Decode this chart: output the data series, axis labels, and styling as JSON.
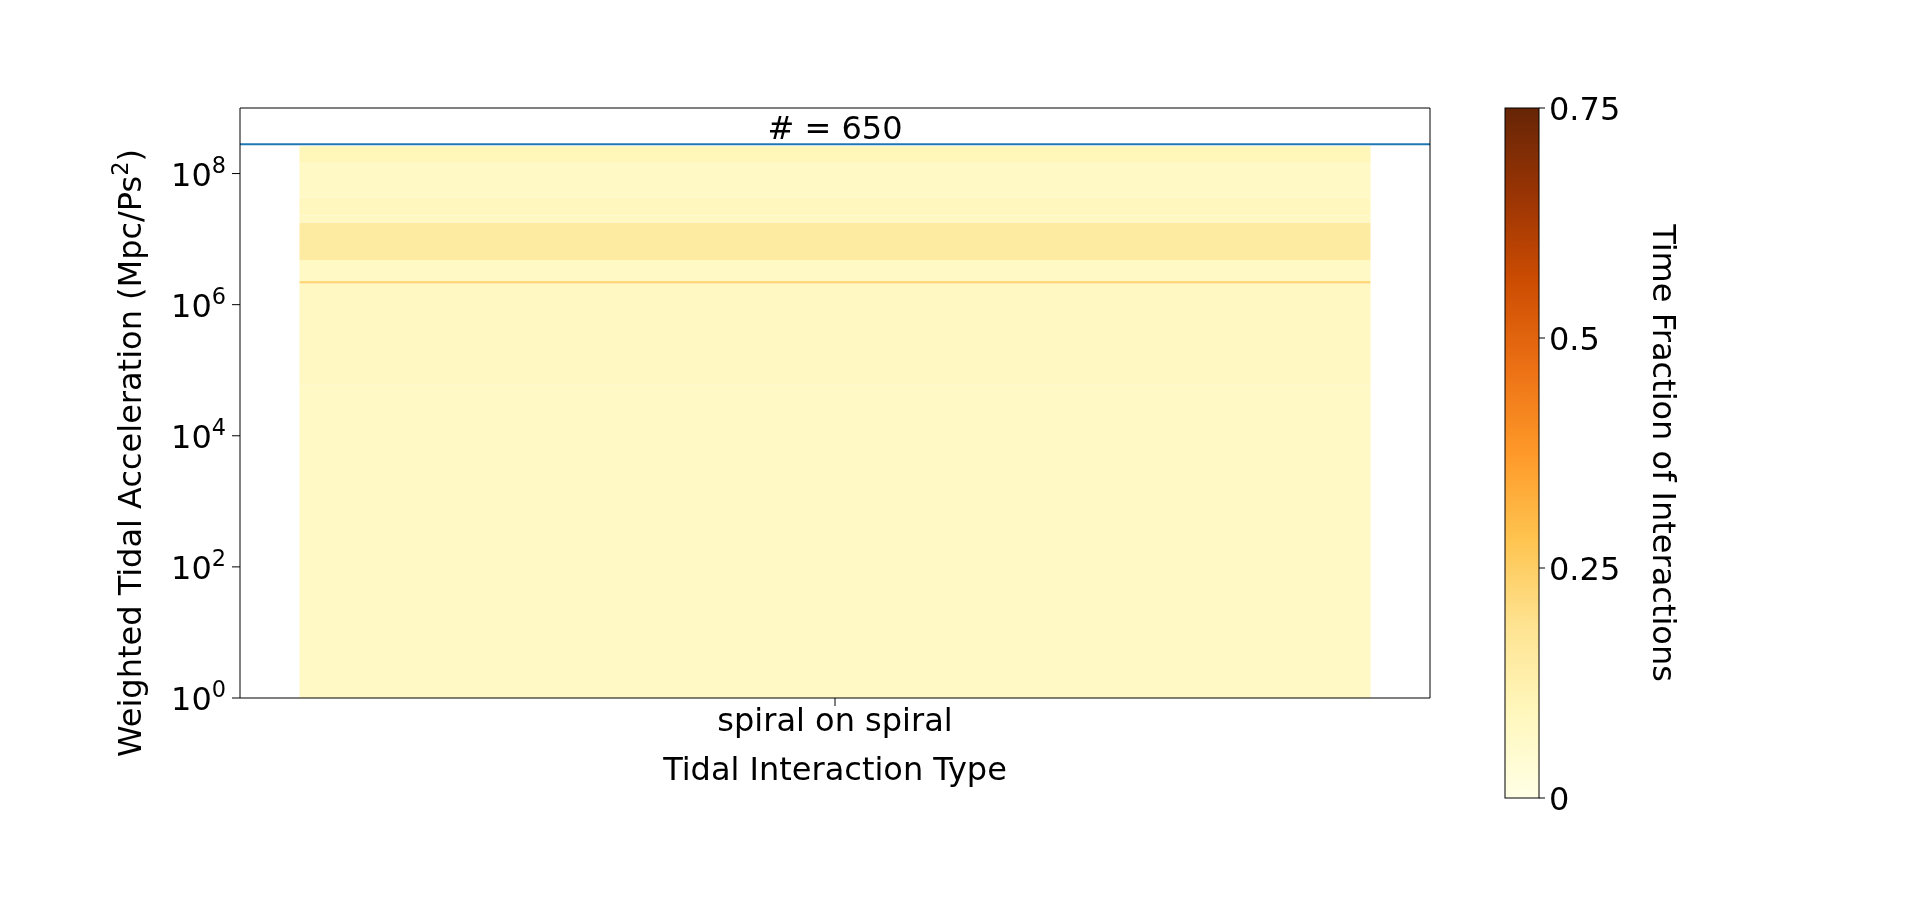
{
  "chart_data": {
    "type": "bar",
    "stacked": true,
    "xlabel": "Tidal Interaction Type",
    "ylabel": "Weighted Tidal Acceleration (Mpc/Ps$^{2}$)",
    "clabel": "Time Fraction of Interactions",
    "annotations": [
      "# = 650"
    ],
    "categories": [
      "spiral on spiral"
    ],
    "series": [
      {
        "color": "#fff9c6",
        "values": [
          60000
        ]
      },
      {
        "color": "#fff8c2",
        "values": [
          2040000
        ]
      },
      {
        "color": "#fed87a",
        "values": [
          200000
        ]
      },
      {
        "color": "#fff9c6",
        "values": [
          2500000
        ]
      },
      {
        "color": "#feeba2",
        "values": [
          13200000
        ]
      },
      {
        "color": "#fff8c2",
        "values": [
          5000000
        ]
      },
      {
        "color": "#fff7be",
        "values": [
          20000000
        ]
      },
      {
        "color": "#fff9c6",
        "values": [
          107000000
        ]
      },
      {
        "color": "#fff6b9",
        "values": [
          110000000
        ]
      }
    ],
    "clim": [
      0,
      0.75
    ],
    "cticks": [
      0,
      0.25,
      0.5,
      0.75
    ],
    "log": true,
    "ylim": [
      1,
      1000000000
    ],
    "yticks": [
      {
        "value": 1,
        "label": "10$^{0}$"
      },
      {
        "value": 100,
        "label": "10$^{2}$"
      },
      {
        "value": 10000,
        "label": "10$^{4}$"
      },
      {
        "value": 1000000,
        "label": "10$^{6}$"
      },
      {
        "value": 100000000,
        "label": "10$^{8}$"
      }
    ],
    "ref_lines": [
      {
        "axis": "y",
        "value": 280000000,
        "color": "#1f77b4"
      }
    ]
  }
}
